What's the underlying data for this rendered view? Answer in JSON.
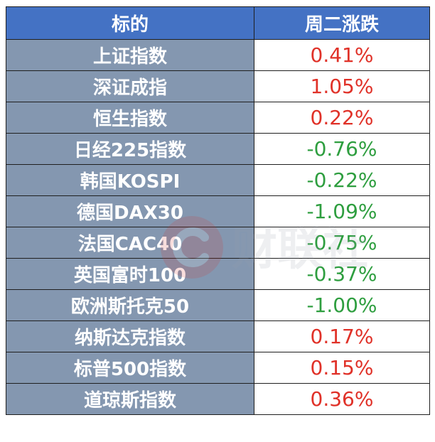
{
  "table": {
    "headers": {
      "name": "标的",
      "change": "周二涨跌"
    },
    "rows": [
      {
        "name": "上证指数",
        "change": "0.41%",
        "direction": "up"
      },
      {
        "name": "深证成指",
        "change": "1.05%",
        "direction": "up"
      },
      {
        "name": "恒生指数",
        "change": "0.22%",
        "direction": "up"
      },
      {
        "name": "日经225指数",
        "change": "-0.76%",
        "direction": "down"
      },
      {
        "name": "韩国KOSPI",
        "change": "-0.22%",
        "direction": "down"
      },
      {
        "name": "德国DAX30",
        "change": "-1.09%",
        "direction": "down"
      },
      {
        "name": "法国CAC40",
        "change": "-0.75%",
        "direction": "down"
      },
      {
        "name": "英国富时100",
        "change": "-0.37%",
        "direction": "down"
      },
      {
        "name": "欧洲斯托克50",
        "change": "-1.00%",
        "direction": "down"
      },
      {
        "name": "纳斯达克指数",
        "change": "0.17%",
        "direction": "up"
      },
      {
        "name": "标普500指数",
        "change": "0.15%",
        "direction": "up"
      },
      {
        "name": "道琼斯指数",
        "change": "0.36%",
        "direction": "up"
      }
    ]
  },
  "colors": {
    "header_bg": "#4472c4",
    "name_cell_bg": "#8497b0",
    "positive": "#e03128",
    "negative": "#2e9e3f"
  },
  "watermark": {
    "text": "财联社",
    "icon": "cls-logo-icon"
  }
}
